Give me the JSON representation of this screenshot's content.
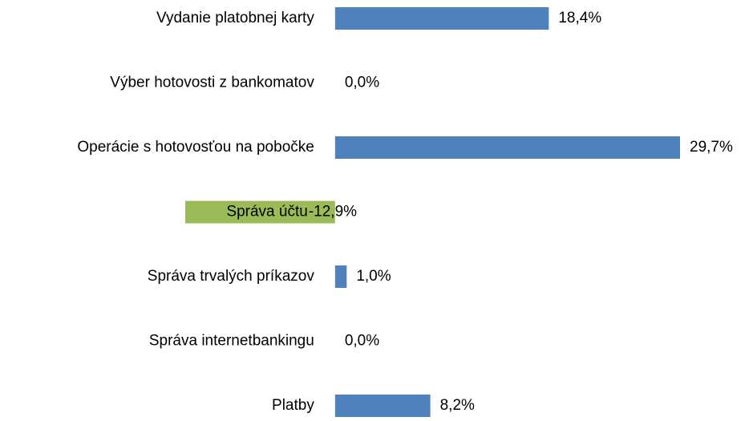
{
  "chart_data": {
    "type": "barh",
    "categories": [
      "Vydanie platobnej karty",
      "Výber hotovosti z bankomatov",
      "Operácie s hotovosťou na pobočke",
      "Správa účtu",
      "Správa trvalých príkazov",
      "Správa internetbankingu",
      "Platby"
    ],
    "values": [
      18.4,
      0.0,
      29.7,
      -12.9,
      1.0,
      0.0,
      8.2
    ],
    "value_labels": [
      "18,4%",
      "0,0%",
      "29,7%",
      "-12,9%",
      "1,0%",
      "0,0%",
      "8,2%"
    ],
    "color": "#4f81bd",
    "negative_color": "#9bbb59"
  }
}
